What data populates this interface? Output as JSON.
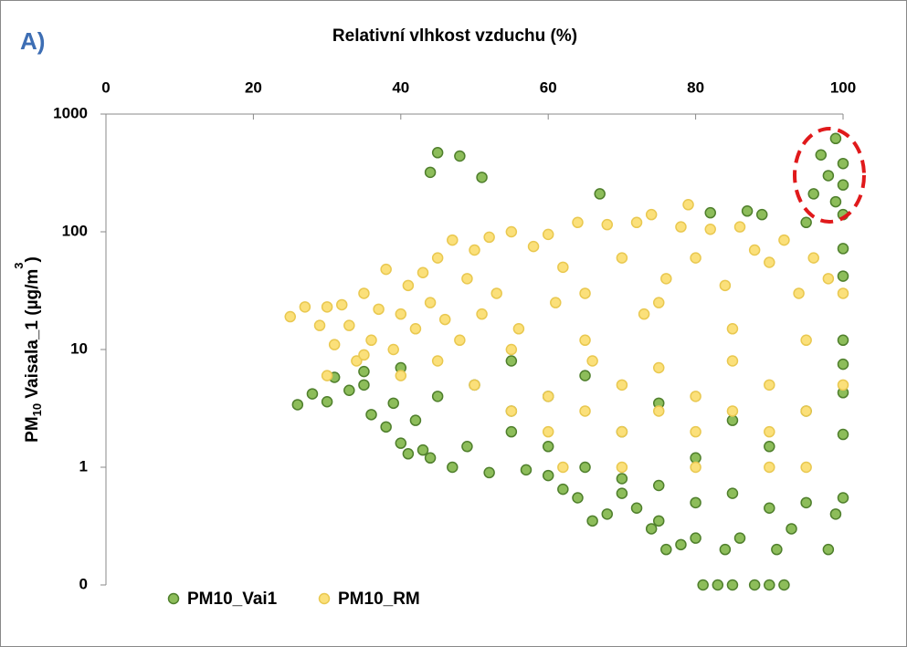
{
  "chart_data": {
    "type": "scatter",
    "annotation": "A)",
    "xlabel": "Relativní vlhkost vzduchu (%)",
    "ylabel_parts": [
      "PM",
      "10",
      "  Vaisala_1 (µg/m",
      "3",
      ")"
    ],
    "xlim": [
      0,
      100
    ],
    "xticks": [
      0,
      20,
      40,
      60,
      80,
      100
    ],
    "ylim": [
      0.1,
      1000
    ],
    "yscale": "log",
    "yticks": [
      {
        "value": 0.1,
        "label": "0"
      },
      1,
      10,
      100,
      1000
    ],
    "legend": "bottom-left",
    "series": [
      {
        "name": "PM10_Vai1",
        "color": "#8dbd5a",
        "stroke": "#4f7f2c",
        "x": [
          26,
          28,
          30,
          31,
          33,
          35,
          36,
          38,
          39,
          40,
          41,
          42,
          43,
          44,
          45,
          44,
          48,
          51,
          47,
          49,
          52,
          55,
          57,
          60,
          62,
          64,
          66,
          67,
          68,
          70,
          72,
          74,
          75,
          76,
          78,
          80,
          81,
          82,
          83,
          84,
          85,
          86,
          87,
          88,
          89,
          90,
          91,
          92,
          93,
          95,
          96,
          97,
          98,
          98,
          99,
          99,
          100,
          100,
          100,
          100,
          100,
          100,
          100,
          100,
          100,
          100,
          99,
          50,
          55,
          60,
          65,
          70,
          75,
          80,
          85,
          90,
          95,
          60,
          70,
          80,
          90,
          95,
          85,
          75,
          65,
          55,
          45,
          35,
          40
        ],
        "values": [
          3.4,
          4.2,
          3.6,
          5.8,
          4.5,
          6.5,
          2.8,
          2.2,
          3.5,
          1.6,
          1.3,
          2.5,
          1.4,
          1.2,
          470,
          320,
          440,
          290,
          1.0,
          1.5,
          0.9,
          2,
          0.95,
          0.85,
          0.65,
          0.55,
          0.35,
          210,
          0.4,
          0.6,
          0.45,
          0.3,
          0.35,
          0.2,
          0.22,
          0.25,
          0.1,
          145,
          0.1,
          0.2,
          0.1,
          0.25,
          150,
          0.1,
          140,
          0.1,
          0.2,
          0.1,
          0.3,
          120,
          210,
          450,
          300,
          0.2,
          620,
          180,
          380,
          250,
          140,
          72,
          42,
          12,
          7.5,
          4.3,
          1.9,
          0.55,
          0.4,
          5,
          3,
          1.5,
          1,
          0.8,
          0.7,
          0.5,
          0.6,
          0.45,
          0.5,
          4,
          2,
          1.2,
          1.5,
          3,
          2.5,
          3.5,
          6,
          8,
          4,
          5,
          7
        ]
      },
      {
        "name": "PM10_RM",
        "color": "#fbe07a",
        "stroke": "#e9c850",
        "x": [
          25,
          27,
          29,
          30,
          31,
          32,
          33,
          34,
          35,
          36,
          37,
          38,
          39,
          40,
          41,
          42,
          43,
          44,
          45,
          46,
          47,
          48,
          49,
          50,
          51,
          52,
          53,
          55,
          56,
          58,
          60,
          61,
          62,
          64,
          65,
          66,
          68,
          70,
          72,
          73,
          74,
          76,
          78,
          79,
          80,
          82,
          84,
          86,
          88,
          90,
          92,
          94,
          96,
          98,
          100,
          30,
          40,
          50,
          60,
          70,
          80,
          90,
          100,
          55,
          65,
          75,
          85,
          95,
          60,
          70,
          80,
          90,
          62,
          70,
          80,
          90,
          95,
          75,
          85,
          65,
          55,
          85,
          75,
          95,
          45,
          35
        ],
        "values": [
          19,
          23,
          16,
          23,
          11,
          24,
          16,
          8,
          30,
          12,
          22,
          48,
          10,
          20,
          35,
          15,
          45,
          25,
          60,
          18,
          85,
          12,
          40,
          70,
          20,
          90,
          30,
          100,
          15,
          75,
          95,
          25,
          50,
          120,
          30,
          8,
          115,
          60,
          120,
          20,
          140,
          40,
          110,
          170,
          60,
          105,
          35,
          110,
          70,
          55,
          85,
          30,
          60,
          40,
          30,
          6,
          6,
          5,
          4,
          5,
          4,
          5,
          5,
          3,
          3,
          3,
          3,
          3,
          2,
          2,
          2,
          2,
          1,
          1,
          1,
          1,
          1,
          7,
          8,
          12,
          10,
          15,
          25,
          12,
          8,
          9
        ]
      }
    ]
  }
}
